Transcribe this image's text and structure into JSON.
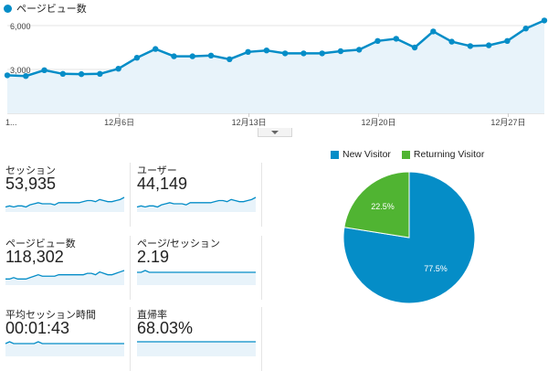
{
  "chart_data": [
    {
      "type": "area",
      "series": [
        {
          "name": "ページビュー数",
          "values": [
            2600,
            2550,
            2950,
            2700,
            2680,
            2700,
            3050,
            3800,
            4400,
            3900,
            3900,
            3950,
            3700,
            4200,
            4300,
            4100,
            4100,
            4100,
            4250,
            4350,
            4950,
            5100,
            4500,
            5600,
            4900,
            4600,
            4650,
            4950,
            5800,
            6350
          ]
        }
      ],
      "x_tick_labels": [
        "1...",
        "12月6日",
        "12月13日",
        "12月20日",
        "12月27日"
      ],
      "y_tick_labels": [
        "3,000",
        "6,000"
      ],
      "ylim": [
        0,
        6000
      ],
      "grid": true,
      "color": "#058dc7"
    },
    {
      "type": "pie",
      "labels": [
        "New Visitor",
        "Returning Visitor"
      ],
      "values": [
        77.5,
        22.5
      ],
      "value_labels": [
        "77.5%",
        "22.5%"
      ],
      "colors": [
        "#058dc7",
        "#50b432"
      ],
      "legend": "top"
    }
  ],
  "metrics": [
    {
      "label": "セッション",
      "value": "53,935",
      "spark": [
        3,
        4,
        3,
        4,
        4,
        3,
        5,
        6,
        7,
        6,
        6,
        6,
        5,
        7,
        7,
        7,
        7,
        7,
        7,
        8,
        9,
        9,
        8,
        10,
        9,
        8,
        8,
        9,
        10,
        12
      ]
    },
    {
      "label": "ユーザー",
      "value": "44,149",
      "spark": [
        3,
        4,
        3,
        4,
        4,
        3,
        5,
        6,
        7,
        6,
        6,
        6,
        5,
        7,
        7,
        7,
        7,
        7,
        7,
        8,
        9,
        9,
        8,
        10,
        9,
        8,
        8,
        9,
        10,
        12
      ]
    },
    {
      "label": "ページビュー数",
      "value": "118,302",
      "spark": [
        3,
        3,
        4,
        3,
        3,
        3,
        4,
        5,
        6,
        5,
        5,
        5,
        5,
        6,
        6,
        6,
        6,
        6,
        6,
        6,
        7,
        7,
        6,
        8,
        7,
        6,
        6,
        7,
        8,
        9
      ]
    },
    {
      "label": "ページ/セッション",
      "value": "2.19",
      "spark": [
        6,
        6,
        7,
        6,
        6,
        6,
        6,
        6,
        6,
        6,
        6,
        6,
        6,
        6,
        6,
        6,
        6,
        6,
        6,
        6,
        6,
        6,
        6,
        6,
        6,
        6,
        6,
        6,
        6,
        6
      ]
    },
    {
      "label": "平均セッション時間",
      "value": "00:01:43",
      "spark": [
        6,
        7,
        6,
        6,
        6,
        6,
        6,
        6,
        7,
        6,
        6,
        6,
        6,
        6,
        6,
        6,
        6,
        6,
        6,
        6,
        6,
        6,
        6,
        6,
        6,
        6,
        6,
        6,
        6,
        6
      ]
    },
    {
      "label": "直帰率",
      "value": "68.03%",
      "spark": [
        6,
        6,
        6,
        6,
        6,
        6,
        6,
        6,
        6,
        6,
        6,
        6,
        6,
        6,
        6,
        6,
        6,
        6,
        6,
        6,
        6,
        6,
        6,
        6,
        6,
        6,
        6,
        6,
        6,
        6
      ]
    }
  ],
  "colors": {
    "accent": "#058dc7",
    "fill": "#e8f3fa",
    "returning": "#50b432"
  }
}
